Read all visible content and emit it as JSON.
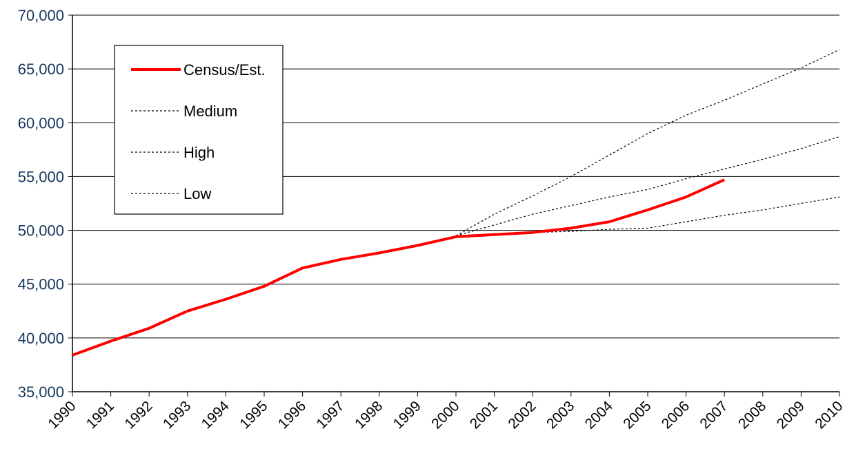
{
  "chart_data": {
    "type": "line",
    "title": "",
    "xlabel": "",
    "ylabel": "",
    "x": [
      1990,
      1991,
      1992,
      1993,
      1994,
      1995,
      1996,
      1997,
      1998,
      1999,
      2000,
      2001,
      2002,
      2003,
      2004,
      2005,
      2006,
      2007,
      2008,
      2009,
      2010
    ],
    "x_tick_labels": [
      "1990",
      "1991",
      "1992",
      "1993",
      "1994",
      "1995",
      "1996",
      "1997",
      "1998",
      "1999",
      "2000",
      "2001",
      "2002",
      "2003",
      "2004",
      "2005",
      "2006",
      "2007",
      "2008",
      "2009",
      "2010"
    ],
    "ylim": [
      35000,
      70000
    ],
    "y_ticks": [
      35000,
      40000,
      45000,
      50000,
      55000,
      60000,
      65000,
      70000
    ],
    "y_tick_labels": [
      "35,000",
      "40,000",
      "45,000",
      "50,000",
      "55,000",
      "60,000",
      "65,000",
      "70,000"
    ],
    "grid": "horizontal",
    "legend_position": "top-left",
    "series": [
      {
        "name": "Census/Est.",
        "style": "solid",
        "color": "#ff0000",
        "points": [
          [
            1990,
            38400
          ],
          [
            1991,
            39700
          ],
          [
            1992,
            40900
          ],
          [
            1993,
            42500
          ],
          [
            1994,
            43600
          ],
          [
            1995,
            44800
          ],
          [
            1996,
            46500
          ],
          [
            1997,
            47300
          ],
          [
            1998,
            47900
          ],
          [
            1999,
            48600
          ],
          [
            2000,
            49400
          ],
          [
            2001,
            49600
          ],
          [
            2002,
            49800
          ],
          [
            2003,
            50200
          ],
          [
            2004,
            50800
          ],
          [
            2005,
            51900
          ],
          [
            2006,
            53100
          ],
          [
            2007,
            54700
          ]
        ]
      },
      {
        "name": "Medium",
        "style": "dotted",
        "color": "#000000",
        "points": [
          [
            2000,
            49500
          ],
          [
            2001,
            50500
          ],
          [
            2002,
            51500
          ],
          [
            2003,
            52300
          ],
          [
            2004,
            53100
          ],
          [
            2005,
            53800
          ],
          [
            2006,
            54800
          ],
          [
            2007,
            55700
          ],
          [
            2008,
            56600
          ],
          [
            2009,
            57600
          ],
          [
            2010,
            58700
          ]
        ]
      },
      {
        "name": "High",
        "style": "dotted",
        "color": "#000000",
        "points": [
          [
            2000,
            49500
          ],
          [
            2001,
            51500
          ],
          [
            2002,
            53200
          ],
          [
            2003,
            55000
          ],
          [
            2004,
            57000
          ],
          [
            2005,
            59000
          ],
          [
            2006,
            60700
          ],
          [
            2007,
            62100
          ],
          [
            2008,
            63600
          ],
          [
            2009,
            65100
          ],
          [
            2010,
            66800
          ]
        ]
      },
      {
        "name": "Low",
        "style": "dotted",
        "color": "#000000",
        "points": [
          [
            2000,
            49500
          ],
          [
            2001,
            49700
          ],
          [
            2002,
            49800
          ],
          [
            2003,
            49900
          ],
          [
            2004,
            50100
          ],
          [
            2005,
            50200
          ],
          [
            2006,
            50800
          ],
          [
            2007,
            51400
          ],
          [
            2008,
            51900
          ],
          [
            2009,
            52500
          ],
          [
            2010,
            53100
          ]
        ]
      }
    ]
  }
}
